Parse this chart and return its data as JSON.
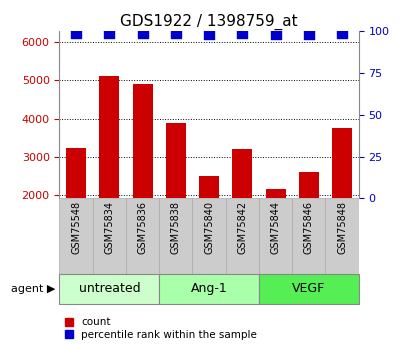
{
  "title": "GDS1922 / 1398759_at",
  "samples": [
    "GSM75548",
    "GSM75834",
    "GSM75836",
    "GSM75838",
    "GSM75840",
    "GSM75842",
    "GSM75844",
    "GSM75846",
    "GSM75848"
  ],
  "counts": [
    3220,
    5120,
    4900,
    3880,
    2500,
    3200,
    2150,
    2600,
    3760
  ],
  "percentiles": [
    99,
    99,
    99,
    99,
    98,
    99,
    98,
    98,
    99
  ],
  "bar_color": "#cc0000",
  "dot_color": "#0000cc",
  "ylim_left": [
    1900,
    6300
  ],
  "ylim_right": [
    0,
    100
  ],
  "yticks_left": [
    2000,
    3000,
    4000,
    5000,
    6000
  ],
  "yticks_right": [
    0,
    25,
    50,
    75,
    100
  ],
  "groups": [
    {
      "label": "untreated",
      "indices": [
        0,
        1,
        2
      ],
      "color": "#ccffcc"
    },
    {
      "label": "Ang-1",
      "indices": [
        3,
        4,
        5
      ],
      "color": "#aaffaa"
    },
    {
      "label": "VEGF",
      "indices": [
        6,
        7,
        8
      ],
      "color": "#55ee55"
    }
  ],
  "agent_label": "agent",
  "legend_count_label": "count",
  "legend_pct_label": "percentile rank within the sample",
  "bar_width": 0.6,
  "dot_size": 55,
  "tick_label_color_left": "#cc0000",
  "tick_label_color_right": "#0000cc",
  "sample_box_color": "#cccccc",
  "sample_box_edge": "#aaaaaa",
  "figsize": [
    4.1,
    3.45
  ],
  "dpi": 100
}
